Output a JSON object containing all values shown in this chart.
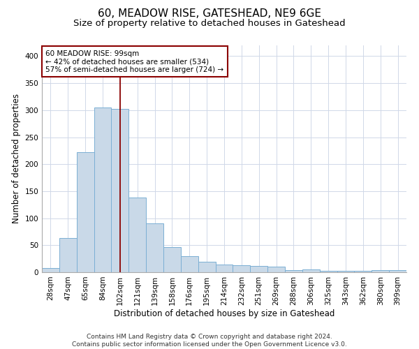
{
  "title": "60, MEADOW RISE, GATESHEAD, NE9 6GE",
  "subtitle": "Size of property relative to detached houses in Gateshead",
  "xlabel": "Distribution of detached houses by size in Gateshead",
  "ylabel": "Number of detached properties",
  "categories": [
    "28sqm",
    "47sqm",
    "65sqm",
    "84sqm",
    "102sqm",
    "121sqm",
    "139sqm",
    "158sqm",
    "176sqm",
    "195sqm",
    "214sqm",
    "232sqm",
    "251sqm",
    "269sqm",
    "288sqm",
    "306sqm",
    "325sqm",
    "343sqm",
    "362sqm",
    "380sqm",
    "399sqm"
  ],
  "values": [
    8,
    63,
    222,
    305,
    303,
    138,
    90,
    46,
    30,
    19,
    14,
    13,
    11,
    10,
    4,
    5,
    3,
    2,
    3,
    4,
    4
  ],
  "bar_color": "#c9d9e8",
  "bar_edge_color": "#7bafd4",
  "red_line_index": 4,
  "ylim": [
    0,
    420
  ],
  "yticks": [
    0,
    50,
    100,
    150,
    200,
    250,
    300,
    350,
    400
  ],
  "annotation_line1": "60 MEADOW RISE: 99sqm",
  "annotation_line2": "← 42% of detached houses are smaller (534)",
  "annotation_line3": "57% of semi-detached houses are larger (724) →",
  "footer_line1": "Contains HM Land Registry data © Crown copyright and database right 2024.",
  "footer_line2": "Contains public sector information licensed under the Open Government Licence v3.0.",
  "title_fontsize": 11,
  "subtitle_fontsize": 9.5,
  "axis_label_fontsize": 8.5,
  "tick_fontsize": 7.5,
  "annotation_fontsize": 7.5,
  "footer_fontsize": 6.5,
  "background_color": "#ffffff",
  "grid_color": "#d0d8e8"
}
